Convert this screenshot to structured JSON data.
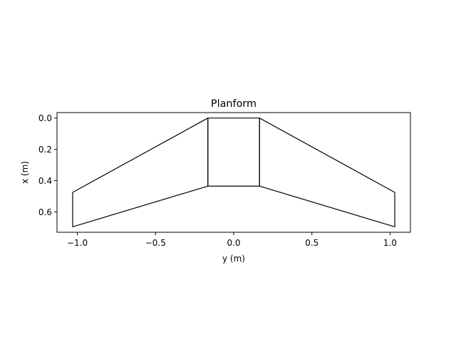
{
  "chart_data": {
    "type": "line",
    "title": "Planform",
    "xlabel": "y (m)",
    "ylabel": "x (m)",
    "xlim": [
      -1.13,
      1.13
    ],
    "ylim": [
      0.73,
      -0.035
    ],
    "y_inverted": true,
    "aspect": "equal",
    "grid": false,
    "legend": "none",
    "xticks": [
      -1.0,
      -0.5,
      0.0,
      0.5,
      1.0
    ],
    "xtick_labels": [
      "−1.0",
      "−0.5",
      "0.0",
      "0.5",
      "1.0"
    ],
    "yticks": [
      0.0,
      0.2,
      0.4,
      0.6
    ],
    "ytick_labels": [
      "0.0",
      "0.2",
      "0.4",
      "0.6"
    ],
    "line_color": "#000000",
    "series": [
      {
        "x": [
          -1.03,
          -0.165,
          -0.165,
          -1.03,
          -1.03
        ],
        "y": [
          0.475,
          0.0,
          0.435,
          0.695,
          0.475
        ]
      },
      {
        "x": [
          -0.165,
          0.165,
          0.165,
          -0.165,
          -0.165
        ],
        "y": [
          0.0,
          0.0,
          0.435,
          0.435,
          0.0
        ]
      },
      {
        "x": [
          0.165,
          1.03,
          1.03,
          0.165,
          0.165
        ],
        "y": [
          0.0,
          0.475,
          0.695,
          0.435,
          0.0
        ]
      }
    ]
  }
}
